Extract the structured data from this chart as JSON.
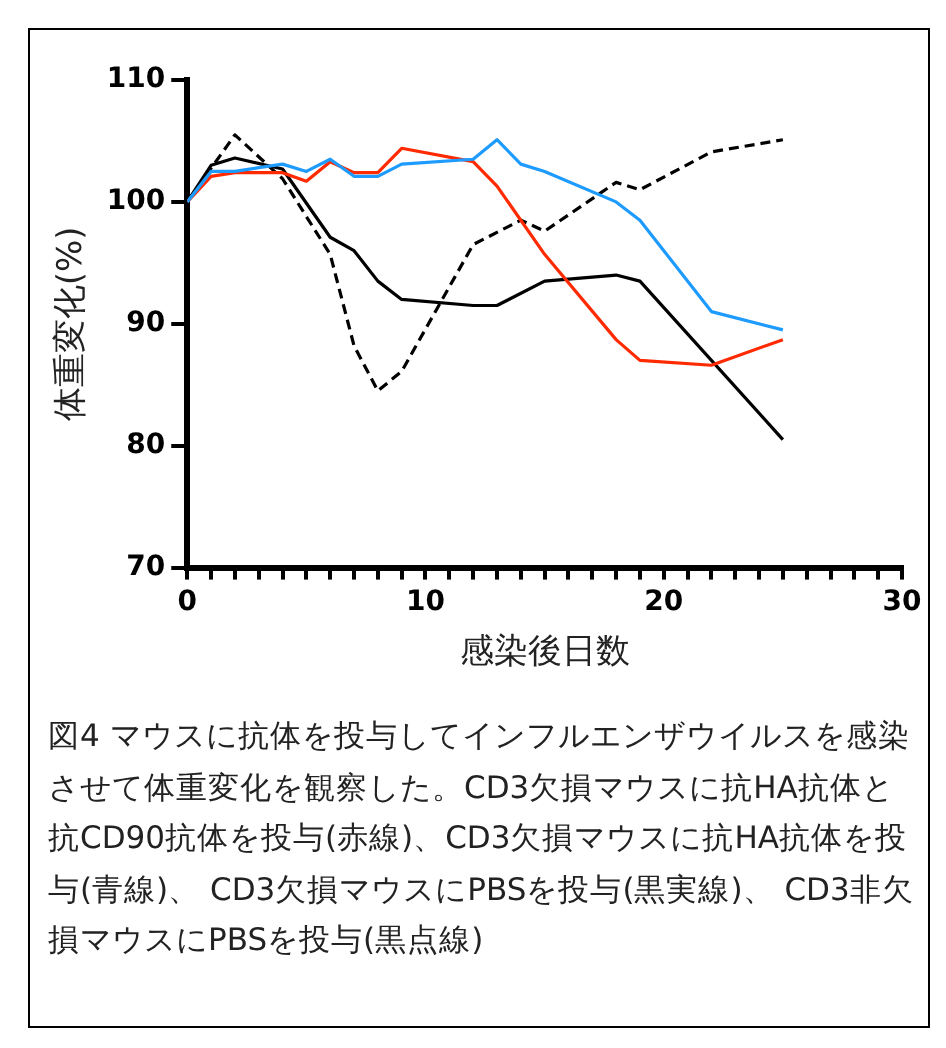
{
  "chart_data": {
    "type": "line",
    "xlabel": "感染後日数",
    "ylabel": "体重変化(%)",
    "xlim": [
      0,
      30
    ],
    "xticks": [
      0,
      {
        "value": 1,
        "label": null
      },
      {
        "value": 2,
        "label": null
      },
      {
        "value": 3,
        "label": null
      },
      {
        "value": 4,
        "label": null
      },
      {
        "value": 5,
        "label": null
      },
      {
        "value": 6,
        "label": null
      },
      {
        "value": 7,
        "label": null
      },
      {
        "value": 8,
        "label": null
      },
      {
        "value": 9,
        "label": null
      },
      10,
      {
        "value": 11,
        "label": null
      },
      {
        "value": 12,
        "label": null
      },
      {
        "value": 13,
        "label": null
      },
      {
        "value": 14,
        "label": null
      },
      {
        "value": 15,
        "label": null
      },
      {
        "value": 16,
        "label": null
      },
      {
        "value": 17,
        "label": null
      },
      {
        "value": 18,
        "label": null
      },
      {
        "value": 19,
        "label": null
      },
      20,
      {
        "value": 21,
        "label": null
      },
      {
        "value": 22,
        "label": null
      },
      {
        "value": 23,
        "label": null
      },
      {
        "value": 24,
        "label": null
      },
      {
        "value": 25,
        "label": null
      },
      {
        "value": 26,
        "label": null
      },
      {
        "value": 27,
        "label": null
      },
      {
        "value": 28,
        "label": null
      },
      {
        "value": 29,
        "label": null
      },
      30
    ],
    "ylim": [
      70,
      110
    ],
    "yticks": [
      70,
      80,
      90,
      100,
      110
    ],
    "grid": false,
    "legend": false,
    "marker": "none",
    "series": [
      {
        "color": "#1e9bff",
        "line_style": "solid",
        "x": [
          0,
          1,
          2,
          4,
          5,
          6,
          7,
          8,
          9,
          12,
          13,
          14,
          15,
          18,
          19,
          22,
          25
        ],
        "values": [
          100,
          102.5,
          102.5,
          103.1,
          102.5,
          103.5,
          102.1,
          102.1,
          103.1,
          103.5,
          105.1,
          103.1,
          102.5,
          100,
          98.5,
          91.0,
          89.5
        ]
      },
      {
        "color": "#ff2a00",
        "line_style": "solid",
        "x": [
          0,
          1,
          2,
          4,
          5,
          6,
          7,
          8,
          9,
          12,
          13,
          15,
          18,
          19,
          22,
          25
        ],
        "values": [
          100,
          102.1,
          102.4,
          102.4,
          101.7,
          103.3,
          102.4,
          102.4,
          104.4,
          103.3,
          101.3,
          95.7,
          88.7,
          87.0,
          86.6,
          88.7
        ]
      },
      {
        "color": "#000000",
        "line_style": "solid",
        "x": [
          0,
          1,
          2,
          4,
          6,
          7,
          8,
          9,
          12,
          13,
          15,
          18,
          19,
          25
        ],
        "values": [
          100,
          103.0,
          103.6,
          102.7,
          97.1,
          96.0,
          93.5,
          92.0,
          91.5,
          91.5,
          93.5,
          94.0,
          93.5,
          80.5
        ]
      },
      {
        "color": "#000000",
        "line_style": "dashed",
        "x": [
          0,
          2,
          4,
          6,
          7,
          8,
          9,
          12,
          14,
          15,
          18,
          19,
          22,
          25
        ],
        "values": [
          100,
          105.5,
          101.9,
          95.7,
          88.2,
          84.5,
          86.1,
          96.5,
          98.5,
          97.6,
          101.6,
          101.0,
          104.1,
          105.1
        ]
      }
    ],
    "annotations": [
      "図4 マウスに抗体を投与してインフルエンザウイルスを感染させて体重変化を観察した。CD3欠損マウスに抗HA抗体と抗CD90抗体を投与(赤線)、CD3欠損マウスに抗HA抗体を投与(青線)、 CD3欠損マウスにPBSを投与(黒実線)、 CD3非欠損マウスにPBSを投与(黒点線)"
    ]
  }
}
